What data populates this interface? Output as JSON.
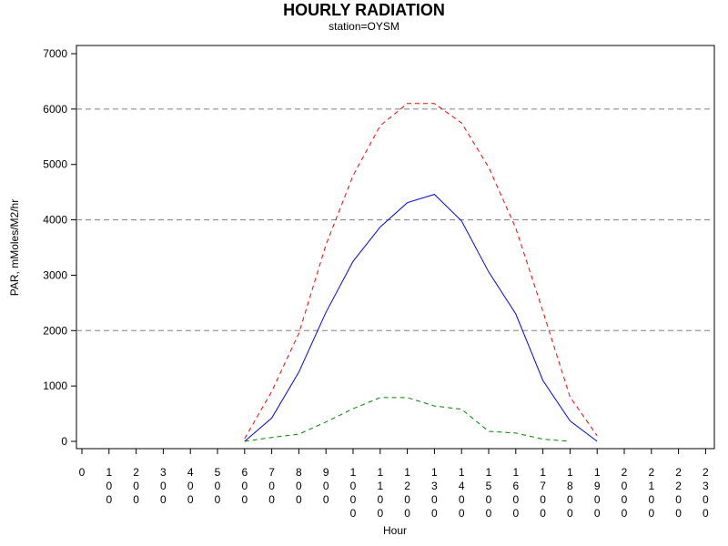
{
  "chart_data": {
    "type": "line",
    "title": "HOURLY RADIATION",
    "subtitle": "station=OYSM",
    "xlabel": "Hour",
    "ylabel": "PAR, mMoles/M2/hr",
    "ylim": [
      0,
      7000
    ],
    "yticks": [
      "0",
      "1000",
      "2000",
      "3000",
      "4000",
      "5000",
      "6000",
      "7000"
    ],
    "xticks": [
      "0",
      "100",
      "200",
      "300",
      "400",
      "500",
      "600",
      "700",
      "800",
      "900",
      "1000",
      "1100",
      "1200",
      "1300",
      "1400",
      "1500",
      "1600",
      "1700",
      "1800",
      "1900",
      "2000",
      "2100",
      "2200",
      "2300"
    ],
    "grid": "horizontal dashed at 2000, 4000, 6000",
    "series": [
      {
        "color": "#0000ff",
        "style": "solid",
        "x": [
          600,
          700,
          800,
          900,
          1000,
          1100,
          1200,
          1300,
          1400,
          1500,
          1600,
          1700,
          1800,
          1900
        ],
        "values": [
          0,
          420,
          1250,
          2330,
          3250,
          3870,
          4310,
          4460,
          3980,
          3060,
          2300,
          1100,
          370,
          0
        ]
      },
      {
        "color": "#ff0000",
        "style": "dashed",
        "x": [
          600,
          700,
          800,
          900,
          1000,
          1100,
          1200,
          1300,
          1400,
          1500,
          1600,
          1700,
          1800,
          1900
        ],
        "values": [
          50,
          900,
          1950,
          3550,
          4800,
          5700,
          6100,
          6100,
          5750,
          4950,
          3850,
          2350,
          800,
          100
        ]
      },
      {
        "color": "#008000",
        "style": "dashed",
        "x": [
          600,
          700,
          800,
          900,
          1000,
          1100,
          1200,
          1300,
          1400,
          1500,
          1600,
          1700,
          1800
        ],
        "values": [
          0,
          70,
          130,
          350,
          590,
          790,
          790,
          640,
          580,
          180,
          150,
          40,
          0
        ]
      }
    ]
  }
}
